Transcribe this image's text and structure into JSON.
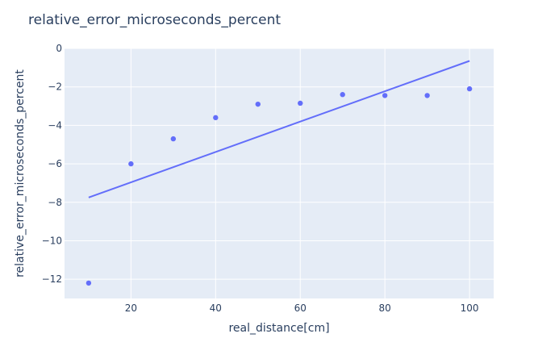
{
  "chart_data": {
    "type": "scatter",
    "title": "relative_error_microseconds_percent",
    "xlabel": "real_distance[cm]",
    "ylabel": "relative_error_microseconds_percent",
    "xlim": [
      4.3,
      105.7
    ],
    "ylim": [
      -13.0,
      0
    ],
    "x_ticks": [
      20,
      40,
      60,
      80,
      100
    ],
    "y_ticks": [
      0,
      -2,
      -4,
      -6,
      -8,
      -10,
      -12
    ],
    "grid": true,
    "colors": {
      "plot_bg": "#e5ecf6",
      "marker": "#636efa",
      "line": "#636efa",
      "grid": "#ffffff",
      "text": "#2a3f5f"
    },
    "series": [
      {
        "mode": "markers",
        "x": [
          10,
          20,
          30,
          40,
          50,
          60,
          70,
          80,
          90,
          100
        ],
        "y": [
          -12.2,
          -6.0,
          -4.7,
          -3.6,
          -2.9,
          -2.85,
          -2.4,
          -2.45,
          -2.45,
          -2.1
        ]
      },
      {
        "mode": "lines",
        "x": [
          10,
          100
        ],
        "y": [
          -7.75,
          -0.65
        ]
      }
    ]
  }
}
